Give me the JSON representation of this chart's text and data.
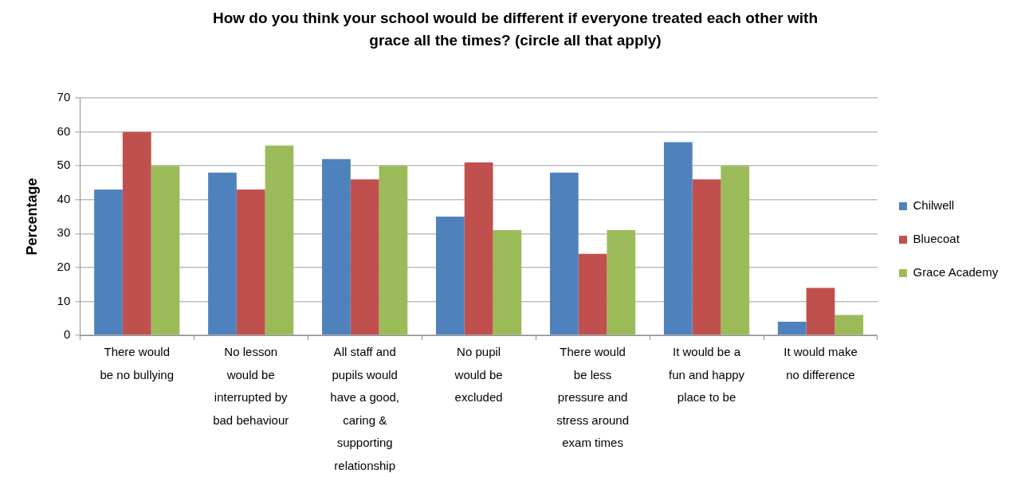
{
  "chart_data": {
    "type": "bar",
    "title": "How do you think your school would be different if everyone treated each other with grace all the times? (circle all that apply)",
    "ylabel": "Percentage",
    "categories": [
      "There would be no bullying",
      "No lesson would be interrupted by bad behaviour",
      "All staff and pupils would have a good, caring & supporting relationship",
      "No pupil would be excluded",
      "There would be less pressure and stress around exam times",
      "It would be a fun and happy place to be",
      "It would make no difference"
    ],
    "series": [
      {
        "name": "Chilwell",
        "color": "#4f81bd",
        "values": [
          43,
          48,
          52,
          35,
          48,
          57,
          4
        ]
      },
      {
        "name": "Bluecoat",
        "color": "#c0504d",
        "values": [
          60,
          43,
          46,
          51,
          24,
          46,
          14
        ]
      },
      {
        "name": "Grace Academy",
        "color": "#9bbb59",
        "values": [
          50,
          56,
          50,
          31,
          31,
          50,
          6
        ]
      }
    ],
    "ylim": [
      0,
      70
    ],
    "yticks": [
      0,
      10,
      20,
      30,
      40,
      50,
      60,
      70
    ],
    "grid": "y",
    "legend": "right"
  }
}
